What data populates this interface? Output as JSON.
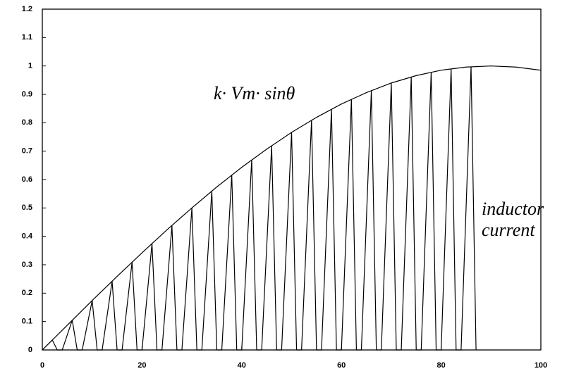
{
  "chart_data": {
    "type": "line",
    "xlim": [
      0,
      100
    ],
    "xticks": [
      0,
      20,
      40,
      60,
      80,
      100
    ],
    "ylim": [
      0,
      1.2
    ],
    "yticks": [
      0,
      0.1,
      0.2,
      0.3,
      0.4,
      0.5,
      0.6,
      0.7,
      0.8,
      0.9,
      1,
      1.1,
      1.2
    ],
    "series": [
      {
        "name": "k· Vm· sinθ",
        "color": "#000000",
        "x": [
          0,
          5,
          10,
          15,
          20,
          25,
          30,
          35,
          40,
          45,
          50,
          55,
          60,
          65,
          70,
          75,
          80,
          85,
          90,
          95,
          100
        ],
        "values": [
          0,
          0.087,
          0.174,
          0.259,
          0.342,
          0.423,
          0.5,
          0.574,
          0.643,
          0.707,
          0.766,
          0.819,
          0.866,
          0.906,
          0.94,
          0.966,
          0.985,
          0.996,
          1,
          0.996,
          0.985
        ]
      },
      {
        "name": "inductor current",
        "color": "#000000",
        "x": [
          0,
          2,
          3,
          4,
          6,
          7,
          8,
          10,
          11,
          12,
          14,
          15,
          16,
          18,
          19,
          20,
          22,
          23,
          24,
          26,
          27,
          28,
          30,
          31,
          32,
          34,
          35,
          36,
          38,
          39,
          40,
          42,
          43,
          44,
          46,
          47,
          48,
          50,
          51,
          52,
          54,
          55,
          56,
          58,
          59,
          60,
          62,
          63,
          64,
          66,
          67,
          68,
          70,
          71,
          72,
          74,
          75,
          76,
          78,
          79,
          80,
          82,
          83,
          84,
          86,
          87
        ],
        "values": [
          0,
          0.035,
          0,
          0,
          0.105,
          0,
          0,
          0.174,
          0,
          0,
          0.242,
          0,
          0,
          0.309,
          0,
          0,
          0.375,
          0,
          0,
          0.438,
          0,
          0,
          0.5,
          0,
          0,
          0.559,
          0,
          0,
          0.616,
          0,
          0,
          0.669,
          0,
          0,
          0.719,
          0,
          0,
          0.766,
          0,
          0,
          0.809,
          0,
          0,
          0.848,
          0,
          0,
          0.883,
          0,
          0,
          0.914,
          0,
          0,
          0.94,
          0,
          0,
          0.961,
          0,
          0,
          0.978,
          0,
          0,
          0.99,
          0,
          0,
          0.998,
          0
        ]
      }
    ]
  }
}
